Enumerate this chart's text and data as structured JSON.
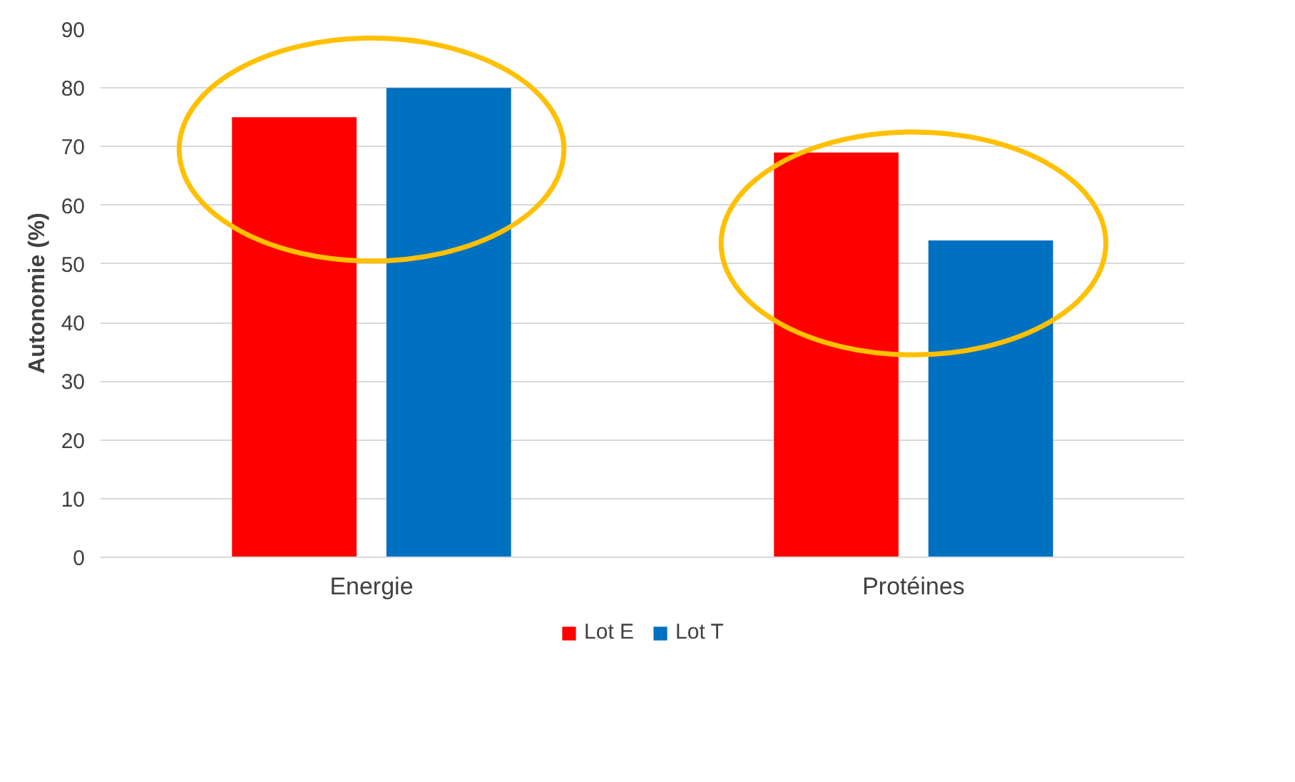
{
  "chart_data": {
    "type": "bar",
    "ylabel": "Autonomie (%)",
    "categories": [
      "Energie",
      "Protéines"
    ],
    "series": [
      {
        "name": "Lot E",
        "color": "#ff0000",
        "values": [
          75,
          69
        ]
      },
      {
        "name": "Lot T",
        "color": "#0070c0",
        "values": [
          80,
          54
        ]
      }
    ],
    "ylim": [
      0,
      90
    ],
    "yticks": [
      0,
      10,
      20,
      30,
      40,
      50,
      60,
      70,
      80,
      90
    ],
    "grid": "y",
    "legend": "bottom"
  }
}
